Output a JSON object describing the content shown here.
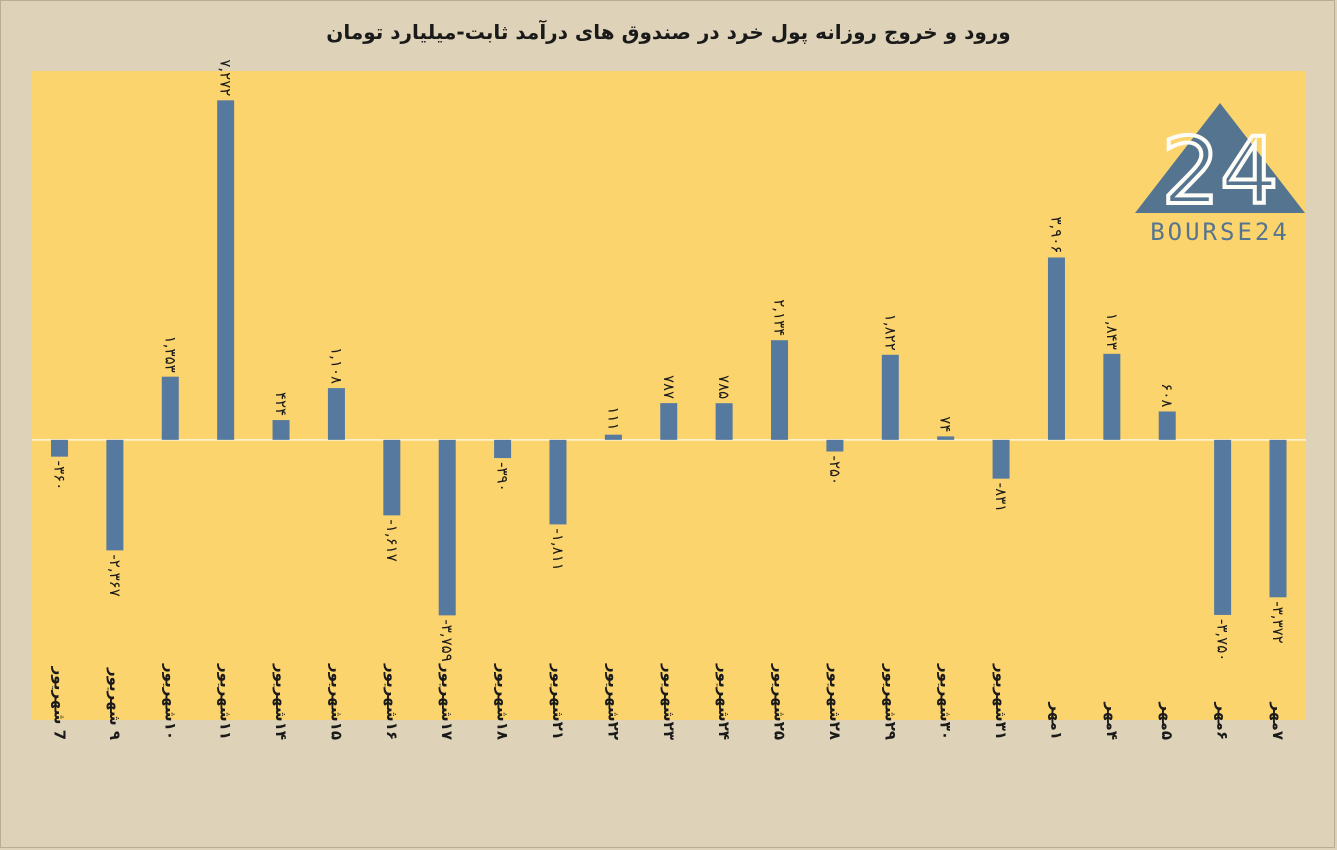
{
  "title": "ورود و خروج روزانه پول خرد در صندوق های درآمد ثابت-میلیارد تومان",
  "watermark": {
    "text": "BOURSE24",
    "mark": "24",
    "color": "#4d6f92"
  },
  "colors": {
    "plot_bg": "#fcd46d",
    "page_bg": "#ded3b8",
    "bar": "#5679a0",
    "text": "#1a1a1a"
  },
  "chart_data": {
    "type": "bar",
    "title": "ورود و خروج روزانه پول خرد در صندوق های درآمد ثابت-میلیارد تومان",
    "xlabel": "",
    "ylabel": "",
    "ylim": [
      -6000,
      7900
    ],
    "grid": false,
    "legend": "none",
    "categories": [
      "7 شهریور",
      "۹ شهریور",
      "۱۰شهریور",
      "۱۱شهریور",
      "۱۴شهریور",
      "۱۵شهریور",
      "۱۶شهریور",
      "۱۷شهریور",
      "۱۸شهریور",
      "۲۱شهریور",
      "۲۲شهریور",
      "۲۳شهریور",
      "۲۴شهریور",
      "۲۵شهریور",
      "۲۸شهریور",
      "۲۹شهریور",
      "۳۰شهریور",
      "۳۱شهریور",
      "۱مهر",
      "۴مهر",
      "۵مهر",
      "۶مهر",
      "۷مهر"
    ],
    "values": [
      -360,
      -2367,
      1353,
      7272,
      424,
      1108,
      -1617,
      -3759,
      -390,
      -1811,
      111,
      787,
      785,
      2134,
      -250,
      1822,
      74,
      -831,
      3906,
      1843,
      608,
      -3750,
      -3372
    ],
    "data_labels": [
      "-۳۶۰",
      "-۲,۳۶۷",
      "۱,۳۵۳",
      "۷,۲۷۲",
      "۴۲۴",
      "۱,۱۰۸",
      "-۱,۶۱۷",
      "-۳,۷۵۹",
      "-۳۹۰",
      "-۱,۸۱۱",
      "۱۱۱",
      "۷۸۷",
      "۷۸۵",
      "۲,۱۳۴",
      "-۲۵۰",
      "۱,۸۲۲",
      "۷۴",
      "-۸۳۱",
      "۳,۹۰۶",
      "۱,۸۴۳",
      "۶۰۸",
      "-۳,۷۵۰",
      "-۳,۳۷۲"
    ]
  }
}
